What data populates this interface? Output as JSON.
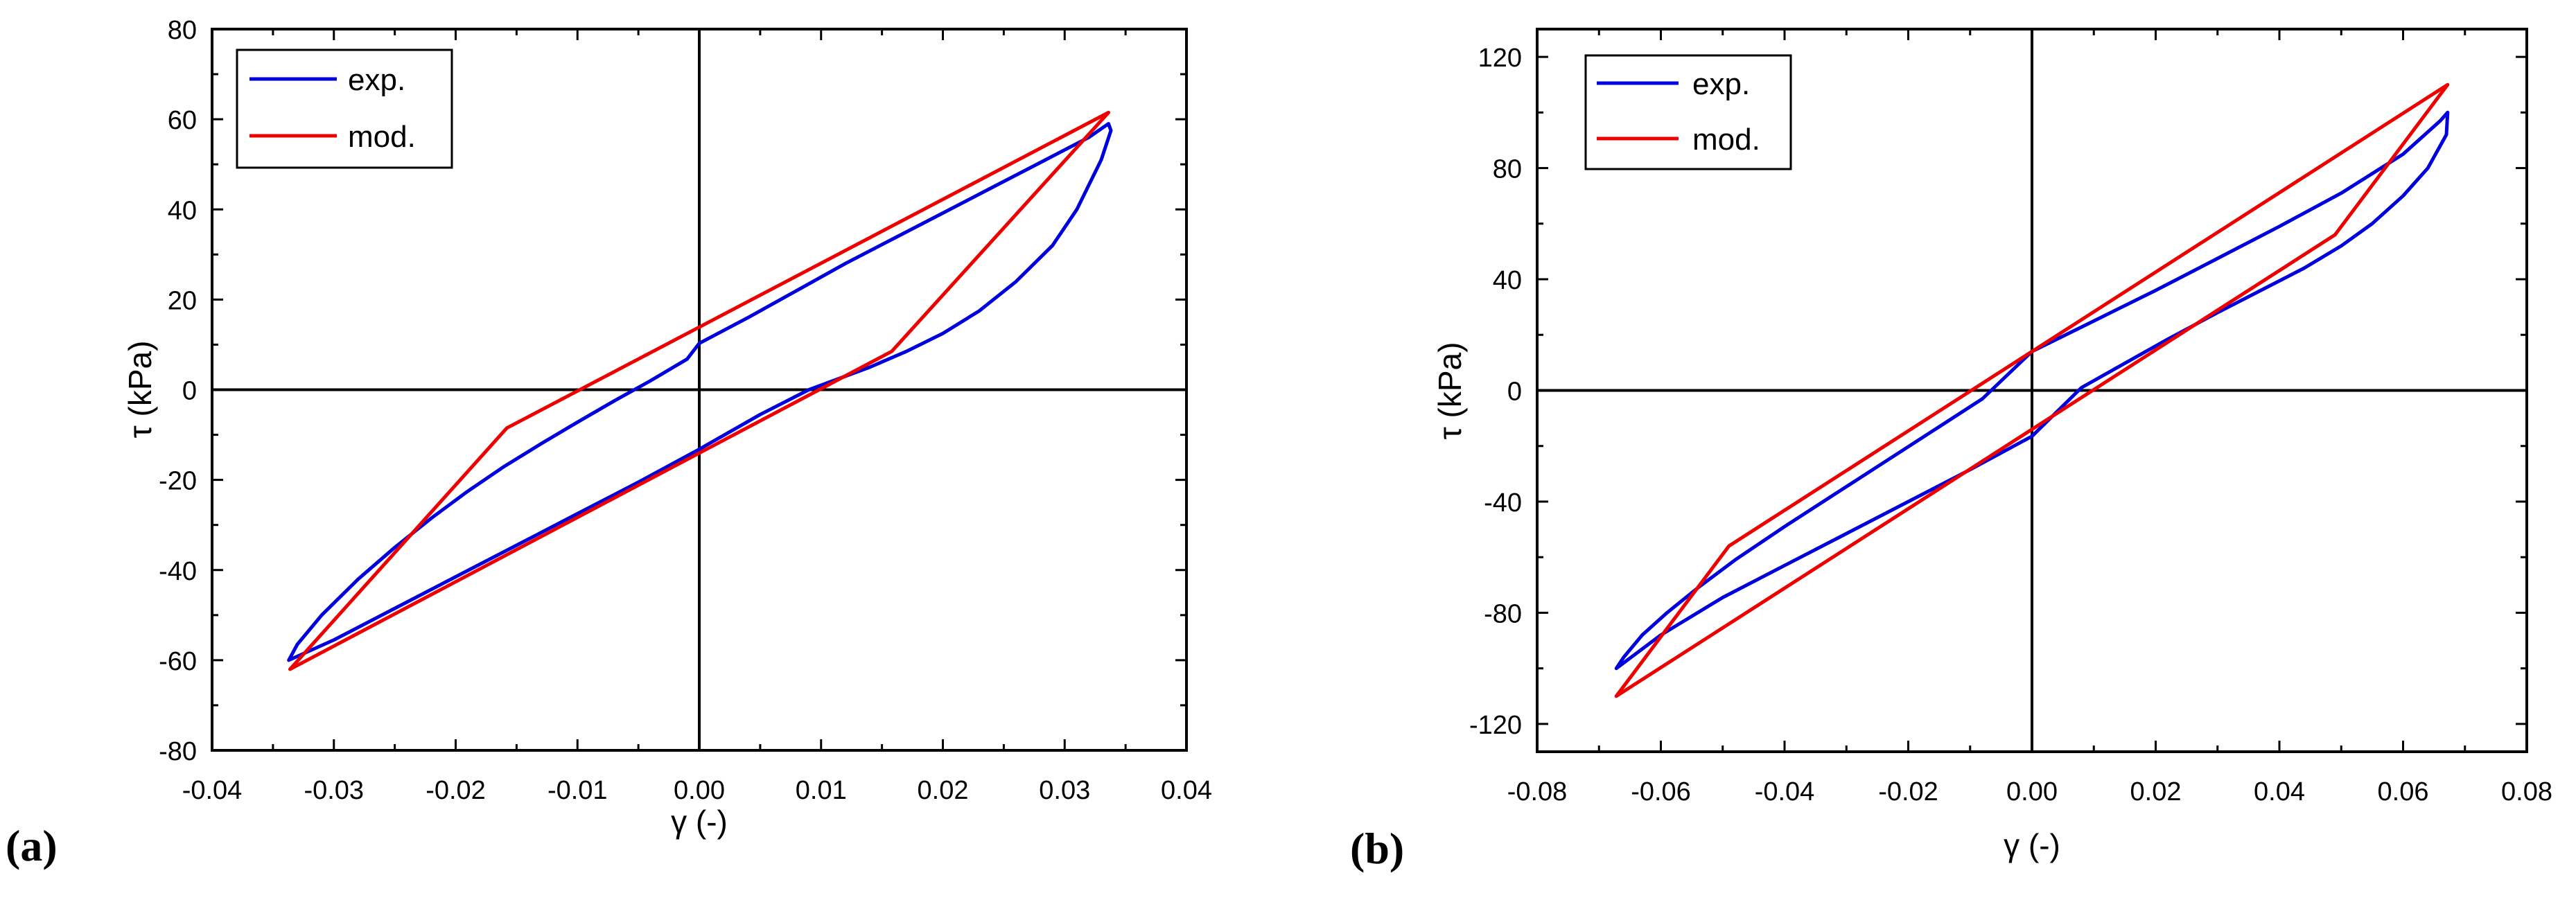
{
  "chart_data": [
    {
      "type": "line",
      "panel_label": "(a)",
      "title": "",
      "xlabel": "γ (-)",
      "ylabel": "τ (kPa)",
      "xlim": [
        -0.04,
        0.04
      ],
      "ylim": [
        -80,
        80
      ],
      "xticks": [
        -0.04,
        -0.03,
        -0.02,
        -0.01,
        0,
        0.01,
        0.02,
        0.03,
        0.04
      ],
      "xtick_labels": [
        "-0.04",
        "-0.03",
        "-0.02",
        "-0.01",
        "0.00",
        "0.01",
        "0.02",
        "0.03",
        "0.04"
      ],
      "yticks": [
        -80,
        -60,
        -40,
        -20,
        0,
        20,
        40,
        60,
        80
      ],
      "ytick_labels": [
        "-80",
        "-60",
        "-40",
        "-20",
        "0",
        "20",
        "40",
        "60",
        "80"
      ],
      "grid": false,
      "zero_lines": true,
      "legend_position": "top-left",
      "series": [
        {
          "name": "exp.",
          "color": "#0000dd",
          "points": [
            [
              -0.0337,
              -60.0
            ],
            [
              -0.033,
              -56.5
            ],
            [
              -0.031,
              -50.0
            ],
            [
              -0.028,
              -42.0
            ],
            [
              -0.025,
              -35.0
            ],
            [
              -0.022,
              -28.5
            ],
            [
              -0.019,
              -22.5
            ],
            [
              -0.016,
              -17.0
            ],
            [
              -0.013,
              -12.0
            ],
            [
              -0.01,
              -7.2
            ],
            [
              -0.007,
              -2.5
            ],
            [
              -0.004,
              2.0
            ],
            [
              -0.001,
              6.8
            ],
            [
              0.0,
              10.3
            ],
            [
              0.004,
              16.0
            ],
            [
              0.008,
              22.0
            ],
            [
              0.012,
              28.0
            ],
            [
              0.016,
              33.6
            ],
            [
              0.02,
              39.2
            ],
            [
              0.024,
              44.8
            ],
            [
              0.028,
              50.4
            ],
            [
              0.032,
              56.0
            ],
            [
              0.0336,
              59.0
            ],
            [
              0.0338,
              57.5
            ],
            [
              0.033,
              51.0
            ],
            [
              0.031,
              40.0
            ],
            [
              0.029,
              32.0
            ],
            [
              0.026,
              24.0
            ],
            [
              0.023,
              17.5
            ],
            [
              0.02,
              12.5
            ],
            [
              0.017,
              8.5
            ],
            [
              0.014,
              5.0
            ],
            [
              0.011,
              2.0
            ],
            [
              0.009,
              0.0
            ],
            [
              0.005,
              -5.5
            ],
            [
              0.0,
              -13.2
            ],
            [
              -0.005,
              -20.5
            ],
            [
              -0.01,
              -27.5
            ],
            [
              -0.015,
              -34.5
            ],
            [
              -0.02,
              -41.5
            ],
            [
              -0.025,
              -48.5
            ],
            [
              -0.03,
              -55.5
            ],
            [
              -0.0337,
              -60.0
            ]
          ]
        },
        {
          "name": "mod.",
          "color": "#ee0000",
          "points": [
            [
              -0.0336,
              -62.0
            ],
            [
              -0.0158,
              -8.5
            ],
            [
              0.0336,
              61.5
            ],
            [
              0.0158,
              8.5
            ],
            [
              -0.0336,
              -62.0
            ]
          ]
        }
      ]
    },
    {
      "type": "line",
      "panel_label": "(b)",
      "title": "",
      "xlabel": "γ (-)",
      "ylabel": "τ (kPa)",
      "xlim": [
        -0.08,
        0.08
      ],
      "ylim": [
        -130,
        130
      ],
      "xticks": [
        -0.08,
        -0.06,
        -0.04,
        -0.02,
        0,
        0.02,
        0.04,
        0.06,
        0.08
      ],
      "xtick_labels": [
        "-0.08",
        "-0.06",
        "-0.04",
        "-0.02",
        "0.00",
        "0.02",
        "0.04",
        "0.06",
        "0.08"
      ],
      "yticks": [
        -120,
        -80,
        -40,
        0,
        40,
        80,
        120
      ],
      "ytick_labels": [
        "-120",
        "-80",
        "-40",
        "0",
        "40",
        "80",
        "120"
      ],
      "grid": false,
      "zero_lines": true,
      "legend_position": "top-left",
      "series": [
        {
          "name": "exp.",
          "color": "#0000dd",
          "points": [
            [
              -0.0672,
              -100.0
            ],
            [
              -0.066,
              -96.0
            ],
            [
              -0.063,
              -88.0
            ],
            [
              -0.059,
              -80.0
            ],
            [
              -0.054,
              -71.0
            ],
            [
              -0.048,
              -61.0
            ],
            [
              -0.04,
              -49.0
            ],
            [
              -0.032,
              -37.5
            ],
            [
              -0.024,
              -26.0
            ],
            [
              -0.016,
              -14.5
            ],
            [
              -0.008,
              -3.0
            ],
            [
              0.0,
              14.0
            ],
            [
              0.01,
              25.0
            ],
            [
              0.02,
              36.0
            ],
            [
              0.03,
              47.5
            ],
            [
              0.04,
              59.0
            ],
            [
              0.05,
              71.0
            ],
            [
              0.06,
              85.0
            ],
            [
              0.066,
              97.0
            ],
            [
              0.0672,
              100.0
            ],
            [
              0.067,
              92.0
            ],
            [
              0.064,
              80.0
            ],
            [
              0.06,
              70.0
            ],
            [
              0.055,
              60.0
            ],
            [
              0.05,
              52.0
            ],
            [
              0.044,
              44.0
            ],
            [
              0.037,
              36.0
            ],
            [
              0.03,
              28.0
            ],
            [
              0.022,
              18.5
            ],
            [
              0.014,
              8.5
            ],
            [
              0.008,
              1.0
            ],
            [
              0.0,
              -16.5
            ],
            [
              -0.01,
              -28.5
            ],
            [
              -0.02,
              -40.0
            ],
            [
              -0.03,
              -51.5
            ],
            [
              -0.04,
              -63.0
            ],
            [
              -0.05,
              -74.5
            ],
            [
              -0.06,
              -88.0
            ],
            [
              -0.0672,
              -100.0
            ]
          ]
        },
        {
          "name": "mod.",
          "color": "#ee0000",
          "points": [
            [
              -0.0672,
              -110.0
            ],
            [
              -0.049,
              -56.0
            ],
            [
              0.0672,
              110.0
            ],
            [
              0.049,
              56.0
            ],
            [
              -0.0672,
              -110.0
            ]
          ]
        }
      ]
    }
  ]
}
